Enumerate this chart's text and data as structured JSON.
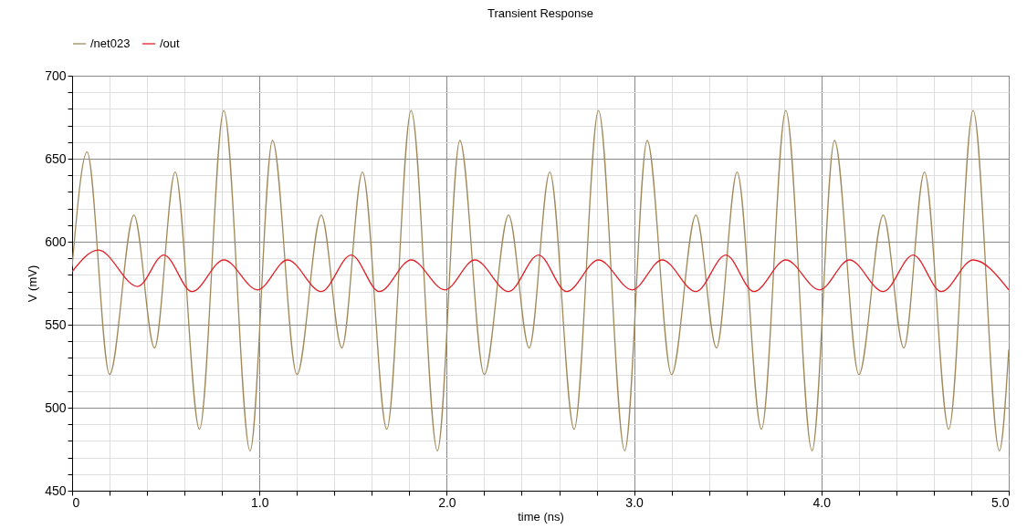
{
  "chart_data": {
    "type": "line",
    "title": "Transient Response",
    "xlabel": "time (ns)",
    "ylabel": "V (mV)",
    "legend": "top left",
    "grid": true,
    "line_style": "solid",
    "xlim": [
      0,
      5
    ],
    "ylim": [
      450,
      700
    ],
    "xticks": [
      0,
      {
        "value": 0.2,
        "label": null
      },
      {
        "value": 0.4,
        "label": null
      },
      {
        "value": 0.6,
        "label": null
      },
      {
        "value": 0.8,
        "label": null
      },
      {
        "value": 1,
        "label": "1.0"
      },
      {
        "value": 1.2,
        "label": null
      },
      {
        "value": 1.4,
        "label": null
      },
      {
        "value": 1.6,
        "label": null
      },
      {
        "value": 1.8,
        "label": null
      },
      {
        "value": 2,
        "label": "2.0"
      },
      {
        "value": 2.2,
        "label": null
      },
      {
        "value": 2.4,
        "label": null
      },
      {
        "value": 2.6,
        "label": null
      },
      {
        "value": 2.8,
        "label": null
      },
      {
        "value": 3,
        "label": "3.0"
      },
      {
        "value": 3.2,
        "label": null
      },
      {
        "value": 3.4,
        "label": null
      },
      {
        "value": 3.6,
        "label": null
      },
      {
        "value": 3.8,
        "label": null
      },
      {
        "value": 4,
        "label": "4.0"
      },
      {
        "value": 4.2,
        "label": null
      },
      {
        "value": 4.4,
        "label": null
      },
      {
        "value": 4.6,
        "label": null
      },
      {
        "value": 4.8,
        "label": null
      },
      {
        "value": 5,
        "label": "5.0"
      }
    ],
    "yticks": [
      450,
      {
        "value": 460,
        "label": null
      },
      {
        "value": 470,
        "label": null
      },
      {
        "value": 480,
        "label": null
      },
      {
        "value": 490,
        "label": null
      },
      500,
      {
        "value": 510,
        "label": null
      },
      {
        "value": 520,
        "label": null
      },
      {
        "value": 530,
        "label": null
      },
      {
        "value": 540,
        "label": null
      },
      550,
      {
        "value": 560,
        "label": null
      },
      {
        "value": 570,
        "label": null
      },
      {
        "value": 580,
        "label": null
      },
      {
        "value": 590,
        "label": null
      },
      600,
      {
        "value": 610,
        "label": null
      },
      {
        "value": 620,
        "label": null
      },
      {
        "value": 630,
        "label": null
      },
      {
        "value": 640,
        "label": null
      },
      650,
      {
        "value": 660,
        "label": null
      },
      {
        "value": 670,
        "label": null
      },
      {
        "value": 680,
        "label": null
      },
      {
        "value": 690,
        "label": null
      },
      700
    ],
    "series": [
      {
        "name": "/net023",
        "color": "#a08a5a",
        "x": [
          0,
          0.08,
          0.2,
          0.33,
          0.44,
          0.55,
          0.68,
          0.81,
          0.95,
          1.07,
          1.2,
          1.33,
          1.44,
          1.55,
          1.68,
          1.81,
          1.95,
          2.07,
          2.2,
          2.33,
          2.44,
          2.55,
          2.68,
          2.81,
          2.95,
          3.07,
          3.2,
          3.33,
          3.44,
          3.55,
          3.68,
          3.81,
          3.95,
          4.07,
          4.2,
          4.33,
          4.44,
          4.55,
          4.68,
          4.81,
          4.95,
          5
        ],
        "values": [
          585,
          654,
          520,
          616,
          536,
          642,
          487,
          679,
          474,
          661,
          520,
          616,
          536,
          642,
          487,
          679,
          474,
          661,
          520,
          616,
          536,
          642,
          487,
          679,
          474,
          661,
          520,
          616,
          536,
          642,
          487,
          679,
          474,
          661,
          520,
          616,
          536,
          642,
          487,
          679,
          474,
          535
        ]
      },
      {
        "name": "/out",
        "color": "#e01f26",
        "x": [
          0,
          0.14,
          0.35,
          0.49,
          0.64,
          0.81,
          0.99,
          1.15,
          1.33,
          1.49,
          1.64,
          1.81,
          1.99,
          2.15,
          2.33,
          2.49,
          2.64,
          2.81,
          2.99,
          3.15,
          3.33,
          3.49,
          3.64,
          3.81,
          3.99,
          4.15,
          4.33,
          4.49,
          4.64,
          4.81,
          5
        ],
        "values": [
          582,
          595,
          573,
          592,
          570,
          589,
          571,
          589,
          570,
          592,
          570,
          589,
          571,
          589,
          570,
          592,
          570,
          589,
          571,
          589,
          570,
          592,
          570,
          589,
          571,
          589,
          570,
          592,
          570,
          589,
          571
        ]
      }
    ]
  }
}
